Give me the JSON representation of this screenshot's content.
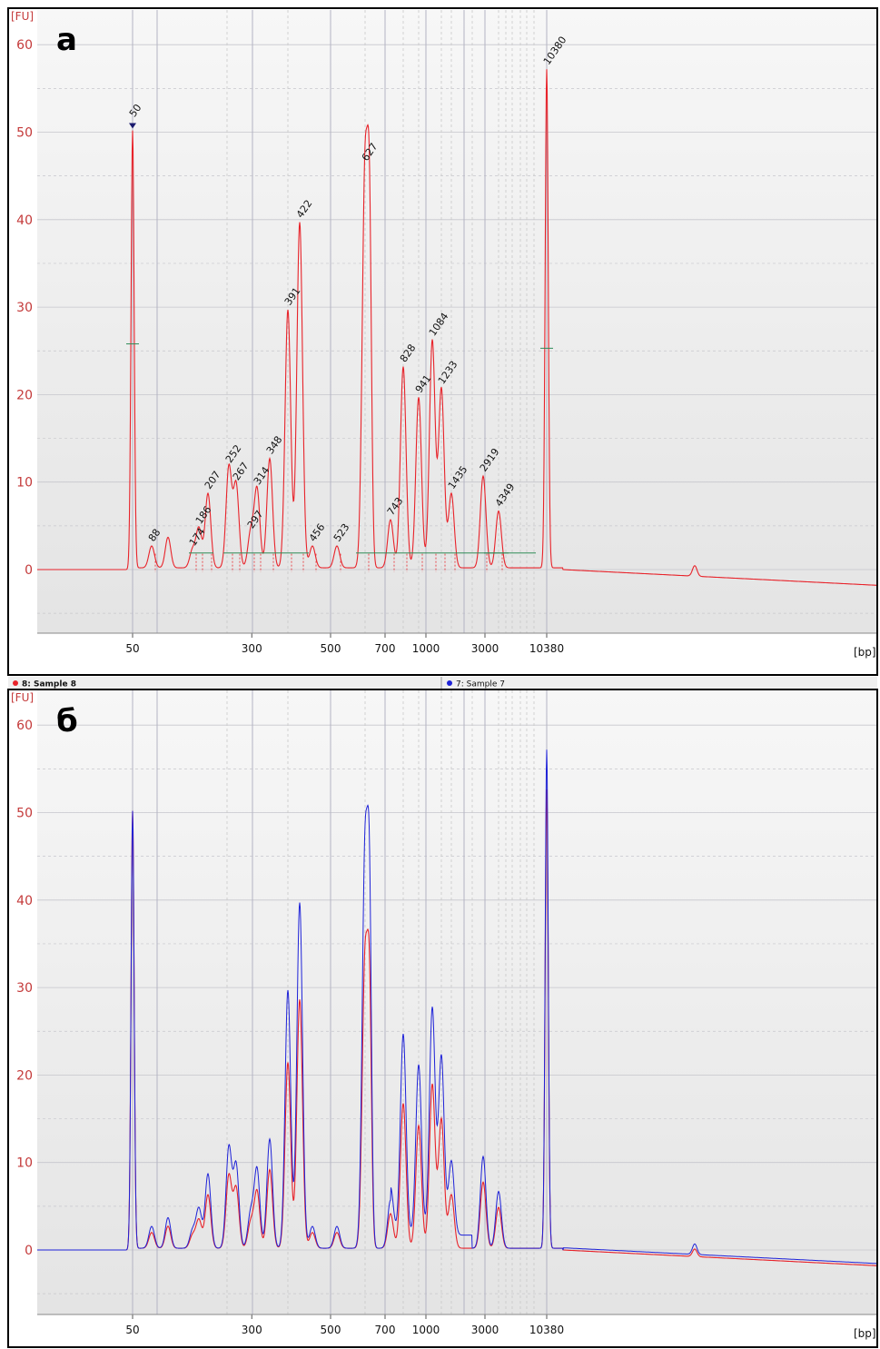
{
  "chart_data": [
    {
      "type": "line",
      "panel_label": "а",
      "y_unit": "[FU]",
      "x_unit": "[bp]",
      "ylim": [
        -7,
        62
      ],
      "y_ticks": [
        "0",
        "10",
        "20",
        "30",
        "40",
        "50",
        "60"
      ],
      "x_tick_labels": [
        "50",
        "300",
        "500",
        "700",
        "1000",
        "3000",
        "10380"
      ],
      "grid": true,
      "markers": {
        "lower": "50",
        "upper": "10380"
      },
      "marker_colors": {
        "lower": "#1f7a1f",
        "upper": "#9932cc"
      },
      "peaks": [
        {
          "label": "50",
          "x": 50,
          "height": 50
        },
        {
          "label": "88",
          "x": 88,
          "height": 2.5
        },
        {
          "label": "174",
          "x": 174,
          "height": 2
        },
        {
          "label": "186",
          "x": 186,
          "height": 4.5
        },
        {
          "label": "207",
          "x": 207,
          "height": 8.5
        },
        {
          "label": "252",
          "x": 252,
          "height": 11.5
        },
        {
          "label": "267",
          "x": 267,
          "height": 9.5
        },
        {
          "label": "297",
          "x": 297,
          "height": 4
        },
        {
          "label": "314",
          "x": 314,
          "height": 9
        },
        {
          "label": "348",
          "x": 348,
          "height": 12.5
        },
        {
          "label": "391",
          "x": 391,
          "height": 29.5
        },
        {
          "label": "422",
          "x": 422,
          "height": 39.5
        },
        {
          "label": "456",
          "x": 456,
          "height": 2.5
        },
        {
          "label": "523",
          "x": 523,
          "height": 2.5
        },
        {
          "label": "627",
          "x": 627,
          "height": 46
        },
        {
          "label": "743",
          "x": 743,
          "height": 5.5
        },
        {
          "label": "828",
          "x": 828,
          "height": 23
        },
        {
          "label": "941",
          "x": 941,
          "height": 19.5
        },
        {
          "label": "1084",
          "x": 1084,
          "height": 26
        },
        {
          "label": "1233",
          "x": 1233,
          "height": 20.5
        },
        {
          "label": "1435",
          "x": 1435,
          "height": 8.5
        },
        {
          "label": "2919",
          "x": 2919,
          "height": 10.5
        },
        {
          "label": "4349",
          "x": 4349,
          "height": 6.5
        },
        {
          "label": "10380",
          "x": 10380,
          "height": 57
        }
      ],
      "series": [
        {
          "color": "#e8232a"
        }
      ]
    },
    {
      "type": "line",
      "panel_label": "б",
      "y_unit": "[FU]",
      "x_unit": "[bp]",
      "ylim": [
        -7,
        62
      ],
      "y_ticks": [
        "0",
        "10",
        "20",
        "30",
        "40",
        "50",
        "60"
      ],
      "x_tick_labels": [
        "50",
        "300",
        "500",
        "700",
        "1000",
        "3000",
        "10380"
      ],
      "grid": true,
      "legend": [
        {
          "label": "8: Sample 8",
          "color": "#e8232a"
        },
        {
          "label": "7: Sample 7",
          "color": "#1e22d8"
        }
      ],
      "series": [
        {
          "name": "8: Sample 8",
          "color": "#e8232a",
          "scale": 0.72
        },
        {
          "name": "7: Sample 7",
          "color": "#1e22d8",
          "scale": 1.0
        }
      ]
    }
  ]
}
